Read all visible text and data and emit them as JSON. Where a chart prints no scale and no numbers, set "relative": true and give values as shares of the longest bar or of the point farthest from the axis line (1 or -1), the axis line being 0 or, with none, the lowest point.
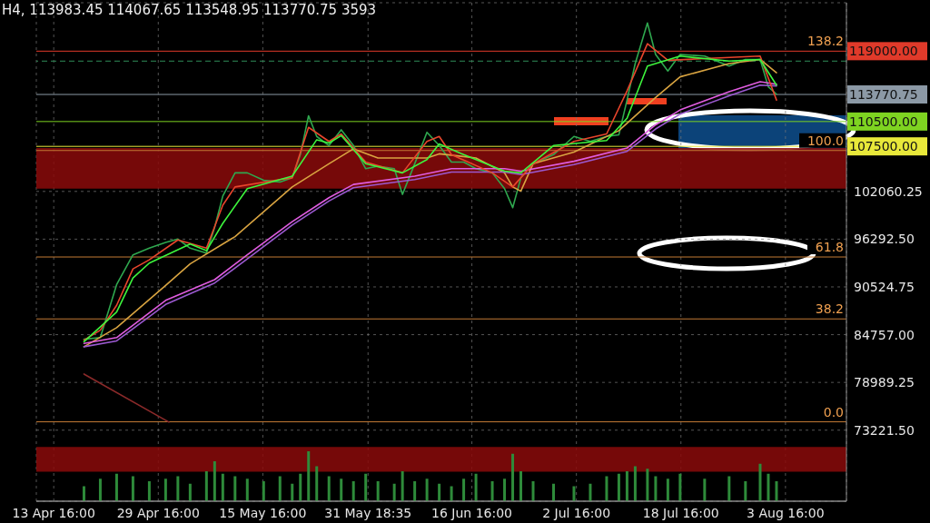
{
  "chart_data": [
    {
      "type": "line",
      "title": "H4, 113983.45 114067.65 113548.95 113770.75 3593",
      "x": [
        "--04-18T07:00",
        "--04-20T19:00",
        "--04-23T07:00",
        "--04-25T19:00",
        "--04-28T07:00",
        "--04-30T19:00",
        "--05-02T16:00",
        "--05-04T13:00",
        "--05-07T01:00",
        "--05-08T07:00",
        "--05-09T13:00",
        "--05-11T10:00",
        "--05-13T07:00",
        "--05-15T19:00",
        "--05-18T07:00",
        "--05-20T04:00",
        "--05-21T10:00",
        "--05-22T16:00",
        "--05-23T22:00",
        "--05-25T19:00",
        "--05-27T16:00",
        "--05-29T13:00",
        "--05-31T10:00",
        "--06-02T07:00",
        "--06-04T19:00",
        "--06-06T01:00",
        "--06-07T22:00",
        "--06-09T19:00",
        "--06-11T16:00",
        "--06-13T13:00",
        "--06-15T10:00",
        "--06-17T07:00",
        "--06-19T19:00",
        "--06-21T16:00",
        "--06-22T22:00",
        "--06-24T04:00",
        "--06-26T01:00",
        "--06-29T04:00",
        "--07-02T07:00",
        "--07-04T19:00",
        "--07-07T07:00",
        "--07-09T04:00",
        "--07-10T10:00",
        "--07-11T16:00",
        "--07-13T13:00",
        "--07-14T19:00",
        "--07-16T16:00",
        "--07-18T13:00",
        "--07-22T07:00",
        "--07-26T01:00",
        "--07-28T13:00",
        "--07-30T19:00",
        "--08-01T01:00",
        "--08-02T07:00"
      ],
      "series": [
        {
          "color": "#2fa84f",
          "values": [
            84200,
            84400,
            90800,
            94400,
            95200,
            95900,
            96300,
            95200,
            94600,
            97700,
            101500,
            104300,
            104300,
            103400,
            103200,
            103700,
            106500,
            111200,
            108700,
            107600,
            109500,
            107600,
            104800,
            105100,
            104800,
            101700,
            105400,
            109200,
            107600,
            105600,
            105600,
            104800,
            104300,
            102400,
            100100,
            103700,
            105400,
            106500,
            108700,
            108100,
            108700,
            108900,
            113100,
            117500,
            122400,
            118600,
            116600,
            118600,
            118400,
            117200,
            118000,
            118000,
            114700,
            113800
          ]
        },
        {
          "color": "#d9a441",
          "x": [
            "--04-18T07:00",
            "--04-23T07:00",
            "--04-30T19:00",
            "--05-04T13:00",
            "--05-11T10:00",
            "--05-20T04:00",
            "--05-25T19:00",
            "--05-29T13:00",
            "--06-02T07:00",
            "--06-09T19:00",
            "--06-11T16:00",
            "--06-17T07:00",
            "--06-21T16:00",
            "--06-22T22:00",
            "--06-24T04:00",
            "--06-26T01:00",
            "--07-02T07:00",
            "--07-09T04:00",
            "--07-14T19:00",
            "--07-18T13:00",
            "--07-26T01:00",
            "--07-30T19:00",
            "--08-02T07:00"
          ],
          "values": [
            83300,
            85600,
            90700,
            93300,
            96600,
            102600,
            105400,
            107200,
            106100,
            106100,
            106600,
            106100,
            104300,
            102600,
            102100,
            105400,
            106800,
            109400,
            113400,
            115900,
            117500,
            118000,
            116400
          ]
        },
        {
          "color": "#e05ce0",
          "x": [
            "--04-18T07:00",
            "--04-23T07:00",
            "--04-30T19:00",
            "--05-08T07:00",
            "--05-13T07:00",
            "--05-20T04:00",
            "--05-25T19:00",
            "--05-29T13:00",
            "--06-07T22:00",
            "--06-13T13:00",
            "--06-21T16:00",
            "--06-24T04:00",
            "--07-02T07:00",
            "--07-10T10:00",
            "--07-14T19:00",
            "--07-18T13:00",
            "--07-26T01:00",
            "--07-30T19:00",
            "--08-02T07:00"
          ],
          "values": [
            83700,
            84400,
            88900,
            91400,
            94400,
            98400,
            101300,
            102900,
            103900,
            104800,
            104800,
            104500,
            105700,
            107300,
            110100,
            111900,
            114100,
            115300,
            115000
          ]
        },
        {
          "color": "#9b59d0",
          "x": [
            "--04-18T07:00",
            "--04-23T07:00",
            "--04-30T19:00",
            "--05-08T07:00",
            "--05-13T07:00",
            "--05-20T04:00",
            "--05-25T19:00",
            "--05-29T13:00",
            "--06-07T22:00",
            "--06-13T13:00",
            "--06-21T16:00",
            "--06-24T04:00",
            "--07-02T07:00",
            "--07-10T10:00",
            "--07-14T19:00",
            "--07-18T13:00",
            "--07-26T01:00",
            "--07-30T19:00",
            "--08-02T07:00"
          ],
          "values": [
            83300,
            84000,
            88400,
            91000,
            93900,
            98000,
            100900,
            102500,
            103500,
            104400,
            104400,
            104100,
            105300,
            106900,
            109600,
            111400,
            113600,
            114900,
            114800
          ]
        },
        {
          "color": "#e8452c",
          "x": [
            "--04-18T07:00",
            "--04-20T19:00",
            "--04-23T07:00",
            "--04-25T19:00",
            "--04-28T07:00",
            "--05-02T16:00",
            "--05-07T01:00",
            "--05-09T13:00",
            "--05-11T10:00",
            "--05-18T07:00",
            "--05-20T04:00",
            "--05-22T16:00",
            "--05-25T19:00",
            "--05-27T16:00",
            "--05-31T10:00",
            "--06-06T01:00",
            "--06-09T19:00",
            "--06-11T16:00",
            "--06-13T13:00",
            "--06-19T19:00",
            "--06-22T22:00",
            "--06-26T01:00",
            "--07-02T07:00",
            "--07-07T07:00",
            "--07-10T10:00",
            "--07-13T13:00",
            "--07-16T16:00",
            "--07-22T07:00",
            "--07-30T19:00",
            "--08-02T07:00"
          ],
          "values": [
            84100,
            85300,
            88300,
            92700,
            93800,
            96200,
            95200,
            100400,
            102600,
            103500,
            103700,
            109800,
            108100,
            109000,
            105600,
            104300,
            108100,
            108700,
            106500,
            104300,
            102600,
            105400,
            108100,
            109000,
            114200,
            119900,
            117900,
            118100,
            118400,
            113100
          ]
        },
        {
          "color": "#3df53d",
          "x": [
            "--04-18T07:00",
            "--04-23T07:00",
            "--04-25T19:00",
            "--04-28T07:00",
            "--05-04T13:00",
            "--05-07T01:00",
            "--05-09T13:00",
            "--05-13T07:00",
            "--05-20T04:00",
            "--05-23T22:00",
            "--05-25T19:00",
            "--05-27T16:00",
            "--05-31T10:00",
            "--06-06T01:00",
            "--06-09T19:00",
            "--06-11T16:00",
            "--06-15T10:00",
            "--06-21T16:00",
            "--06-24T04:00",
            "--06-29T04:00",
            "--07-07T07:00",
            "--07-10T10:00",
            "--07-13T13:00",
            "--07-18T13:00",
            "--07-26T01:00",
            "--07-30T19:00",
            "--08-02T07:00"
          ],
          "values": [
            83900,
            87500,
            91600,
            93400,
            95700,
            94900,
            98200,
            102400,
            103900,
            108300,
            107900,
            108800,
            105400,
            104300,
            105900,
            107800,
            106500,
            104500,
            104300,
            107600,
            108200,
            110900,
            117200,
            118400,
            117800,
            118000,
            114900
          ]
        },
        {
          "color": "#8b2a2a",
          "x": [
            "--04-18T07:00",
            "--05-01T07:00"
          ],
          "values": [
            80000,
            74200
          ]
        }
      ],
      "xlim": [
        "--04-11T00:00",
        "--08-13T00:00"
      ],
      "xticks": [
        {
          "value": "--04-13T16:00",
          "label": "13 Apr 16:00"
        },
        {
          "value": "--04-29T16:00",
          "label": "29 Apr 16:00"
        },
        {
          "value": "--05-15T16:00",
          "label": "15 May 16:00"
        },
        {
          "value": "--05-31T18:35",
          "label": "31 May 18:35"
        },
        {
          "value": "--06-16T16:00",
          "label": "16 Jun 16:00"
        },
        {
          "value": "--07-02T16:00",
          "label": "2 Jul 16:00"
        },
        {
          "value": "--07-18T16:00",
          "label": "18 Jul 16:00"
        },
        {
          "value": "--08-03T16:00",
          "label": "3 Aug 16:00"
        }
      ],
      "ylim": [
        64640,
        124850
      ],
      "yticks": [
        {
          "value": 73221.5,
          "label": "73221.50"
        },
        78989.25,
        {
          "value": 84757,
          "label": "84757.00"
        },
        90524.75,
        {
          "value": 96292.5,
          "label": "96292.50"
        },
        102060.25
      ],
      "grid": true,
      "marker": "none",
      "bands": [
        {
          "axis": "y",
          "from": 102400,
          "to": 107300,
          "color": "#8b0a0a"
        },
        {
          "axis": "y",
          "from": 68200,
          "to": 71200,
          "color": "#8b0a0a"
        }
      ],
      "ref_lines": [
        {
          "axis": "y",
          "value": 119000,
          "color": "#e03a2a"
        },
        {
          "axis": "y",
          "value": 117800,
          "color": "#2e8b57",
          "line_style": "dashed"
        },
        {
          "axis": "y",
          "value": 113770.75,
          "color": "#8c99a6"
        },
        {
          "axis": "y",
          "value": 110500,
          "color": "#7ed321"
        },
        {
          "axis": "y",
          "value": 107500,
          "color": "#e8e83a"
        },
        {
          "axis": "y",
          "value": 107000,
          "color": "#c47a35"
        },
        {
          "axis": "y",
          "value": 94140,
          "color": "#c47a35"
        },
        {
          "axis": "y",
          "value": 86660,
          "color": "#c47a35"
        },
        {
          "axis": "y",
          "value": 74230,
          "color": "#c47a35"
        }
      ],
      "annotations": [
        "138.2",
        "100.0",
        "61.8",
        "38.2",
        "0.0",
        "119000.00",
        "113770.75",
        "110500.00",
        "107500.00"
      ]
    },
    {
      "type": "bar",
      "relative": true,
      "color": "#2e8b3a",
      "x": [
        "--04-18T07:00",
        "--04-20T19:00",
        "--04-23T07:00",
        "--04-25T19:00",
        "--04-28T07:00",
        "--04-30T19:00",
        "--05-02T16:00",
        "--05-04T13:00",
        "--05-07T01:00",
        "--05-08T07:00",
        "--05-09T13:00",
        "--05-11T10:00",
        "--05-13T07:00",
        "--05-15T19:00",
        "--05-18T07:00",
        "--05-20T04:00",
        "--05-21T10:00",
        "--05-22T16:00",
        "--05-23T22:00",
        "--05-25T19:00",
        "--05-27T16:00",
        "--05-29T13:00",
        "--05-31T10:00",
        "--06-02T07:00",
        "--06-04T19:00",
        "--06-06T01:00",
        "--06-07T22:00",
        "--06-09T19:00",
        "--06-11T16:00",
        "--06-13T13:00",
        "--06-15T10:00",
        "--06-17T07:00",
        "--06-19T19:00",
        "--06-21T16:00",
        "--06-22T22:00",
        "--06-24T04:00",
        "--06-26T01:00",
        "--06-29T04:00",
        "--07-02T07:00",
        "--07-04T19:00",
        "--07-07T07:00",
        "--07-09T04:00",
        "--07-10T10:00",
        "--07-11T16:00",
        "--07-13T13:00",
        "--07-14T19:00",
        "--07-16T16:00",
        "--07-18T13:00",
        "--07-22T07:00",
        "--07-26T01:00",
        "--07-28T13:00",
        "--07-30T19:00",
        "--08-01T01:00",
        "--08-02T07:00"
      ],
      "xlim": [
        "--04-11T00:00",
        "--08-13T00:00"
      ],
      "values": [
        0.3,
        0.45,
        0.55,
        0.5,
        0.4,
        0.45,
        0.5,
        0.35,
        0.6,
        0.8,
        0.55,
        0.5,
        0.45,
        0.4,
        0.5,
        0.35,
        0.55,
        1.0,
        0.7,
        0.5,
        0.45,
        0.4,
        0.55,
        0.4,
        0.35,
        0.6,
        0.4,
        0.45,
        0.35,
        0.3,
        0.45,
        0.55,
        0.4,
        0.45,
        0.95,
        0.6,
        0.4,
        0.35,
        0.3,
        0.35,
        0.5,
        0.55,
        0.6,
        0.7,
        0.65,
        0.5,
        0.45,
        0.55,
        0.45,
        0.5,
        0.4,
        0.75,
        0.55,
        0.4
      ]
    }
  ]
}
